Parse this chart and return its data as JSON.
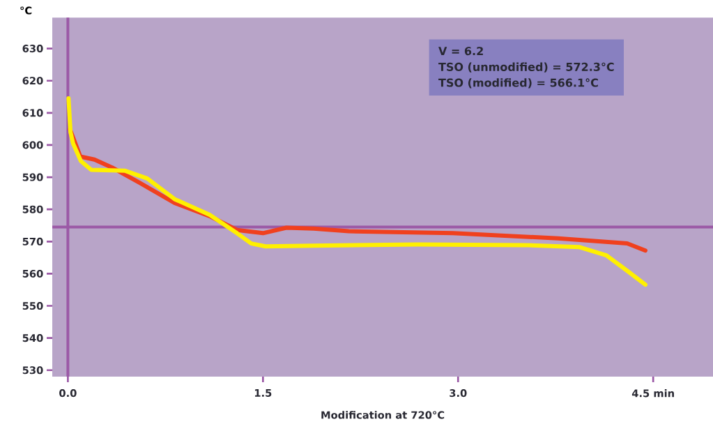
{
  "chart_data": {
    "type": "line",
    "xlabel": "Modification at 720°C",
    "ylabel": "°C",
    "annotations": [
      "V = 6.2",
      "TSO (unmodified) = 572.3°C",
      "TSO (modified)     = 566.1°C"
    ],
    "xlim": [
      -0.12,
      4.96
    ],
    "ylim": [
      528,
      639.6
    ],
    "xticks": [
      {
        "value": 0,
        "label": "0.0"
      },
      1.5,
      {
        "value": 3,
        "label": "3.0"
      },
      {
        "value": 4.5,
        "label": "4.5 min"
      }
    ],
    "yticks": [
      530,
      540,
      550,
      560,
      570,
      580,
      590,
      600,
      610,
      620,
      630
    ],
    "ref_lines": [
      {
        "axis": "x",
        "value": 0,
        "color": "#9b59a6"
      },
      {
        "axis": "y",
        "value": 574.5,
        "color": "#9b59a6"
      }
    ],
    "grid": false,
    "marker": "none",
    "line_style": "solid",
    "series": [
      {
        "color": "#f0401e",
        "x": [
          0.016,
          0.096,
          0.204,
          0.34,
          0.55,
          0.82,
          1.09,
          1.3,
          1.5,
          1.68,
          1.89,
          2.16,
          2.96,
          3.77,
          4.3,
          4.44
        ],
        "values": [
          604.9,
          596.4,
          595.5,
          593,
          588.3,
          582,
          577.9,
          573.6,
          572.6,
          574.3,
          574,
          573.2,
          572.6,
          571,
          569.4,
          567.2
        ]
      },
      {
        "color": "#fff000",
        "x": [
          0.005,
          0.02,
          0.04,
          0.1,
          0.18,
          0.44,
          0.61,
          0.82,
          1.09,
          1.3,
          1.41,
          1.52,
          1.89,
          2.69,
          3.5,
          3.93,
          4.14,
          4.3,
          4.44
        ],
        "values": [
          614.5,
          604,
          600.5,
          595,
          592.3,
          592,
          589.6,
          583.2,
          578.3,
          572.6,
          569.4,
          568.5,
          568.7,
          569.1,
          568.9,
          568.3,
          565.7,
          560.9,
          556.6
        ]
      }
    ]
  }
}
